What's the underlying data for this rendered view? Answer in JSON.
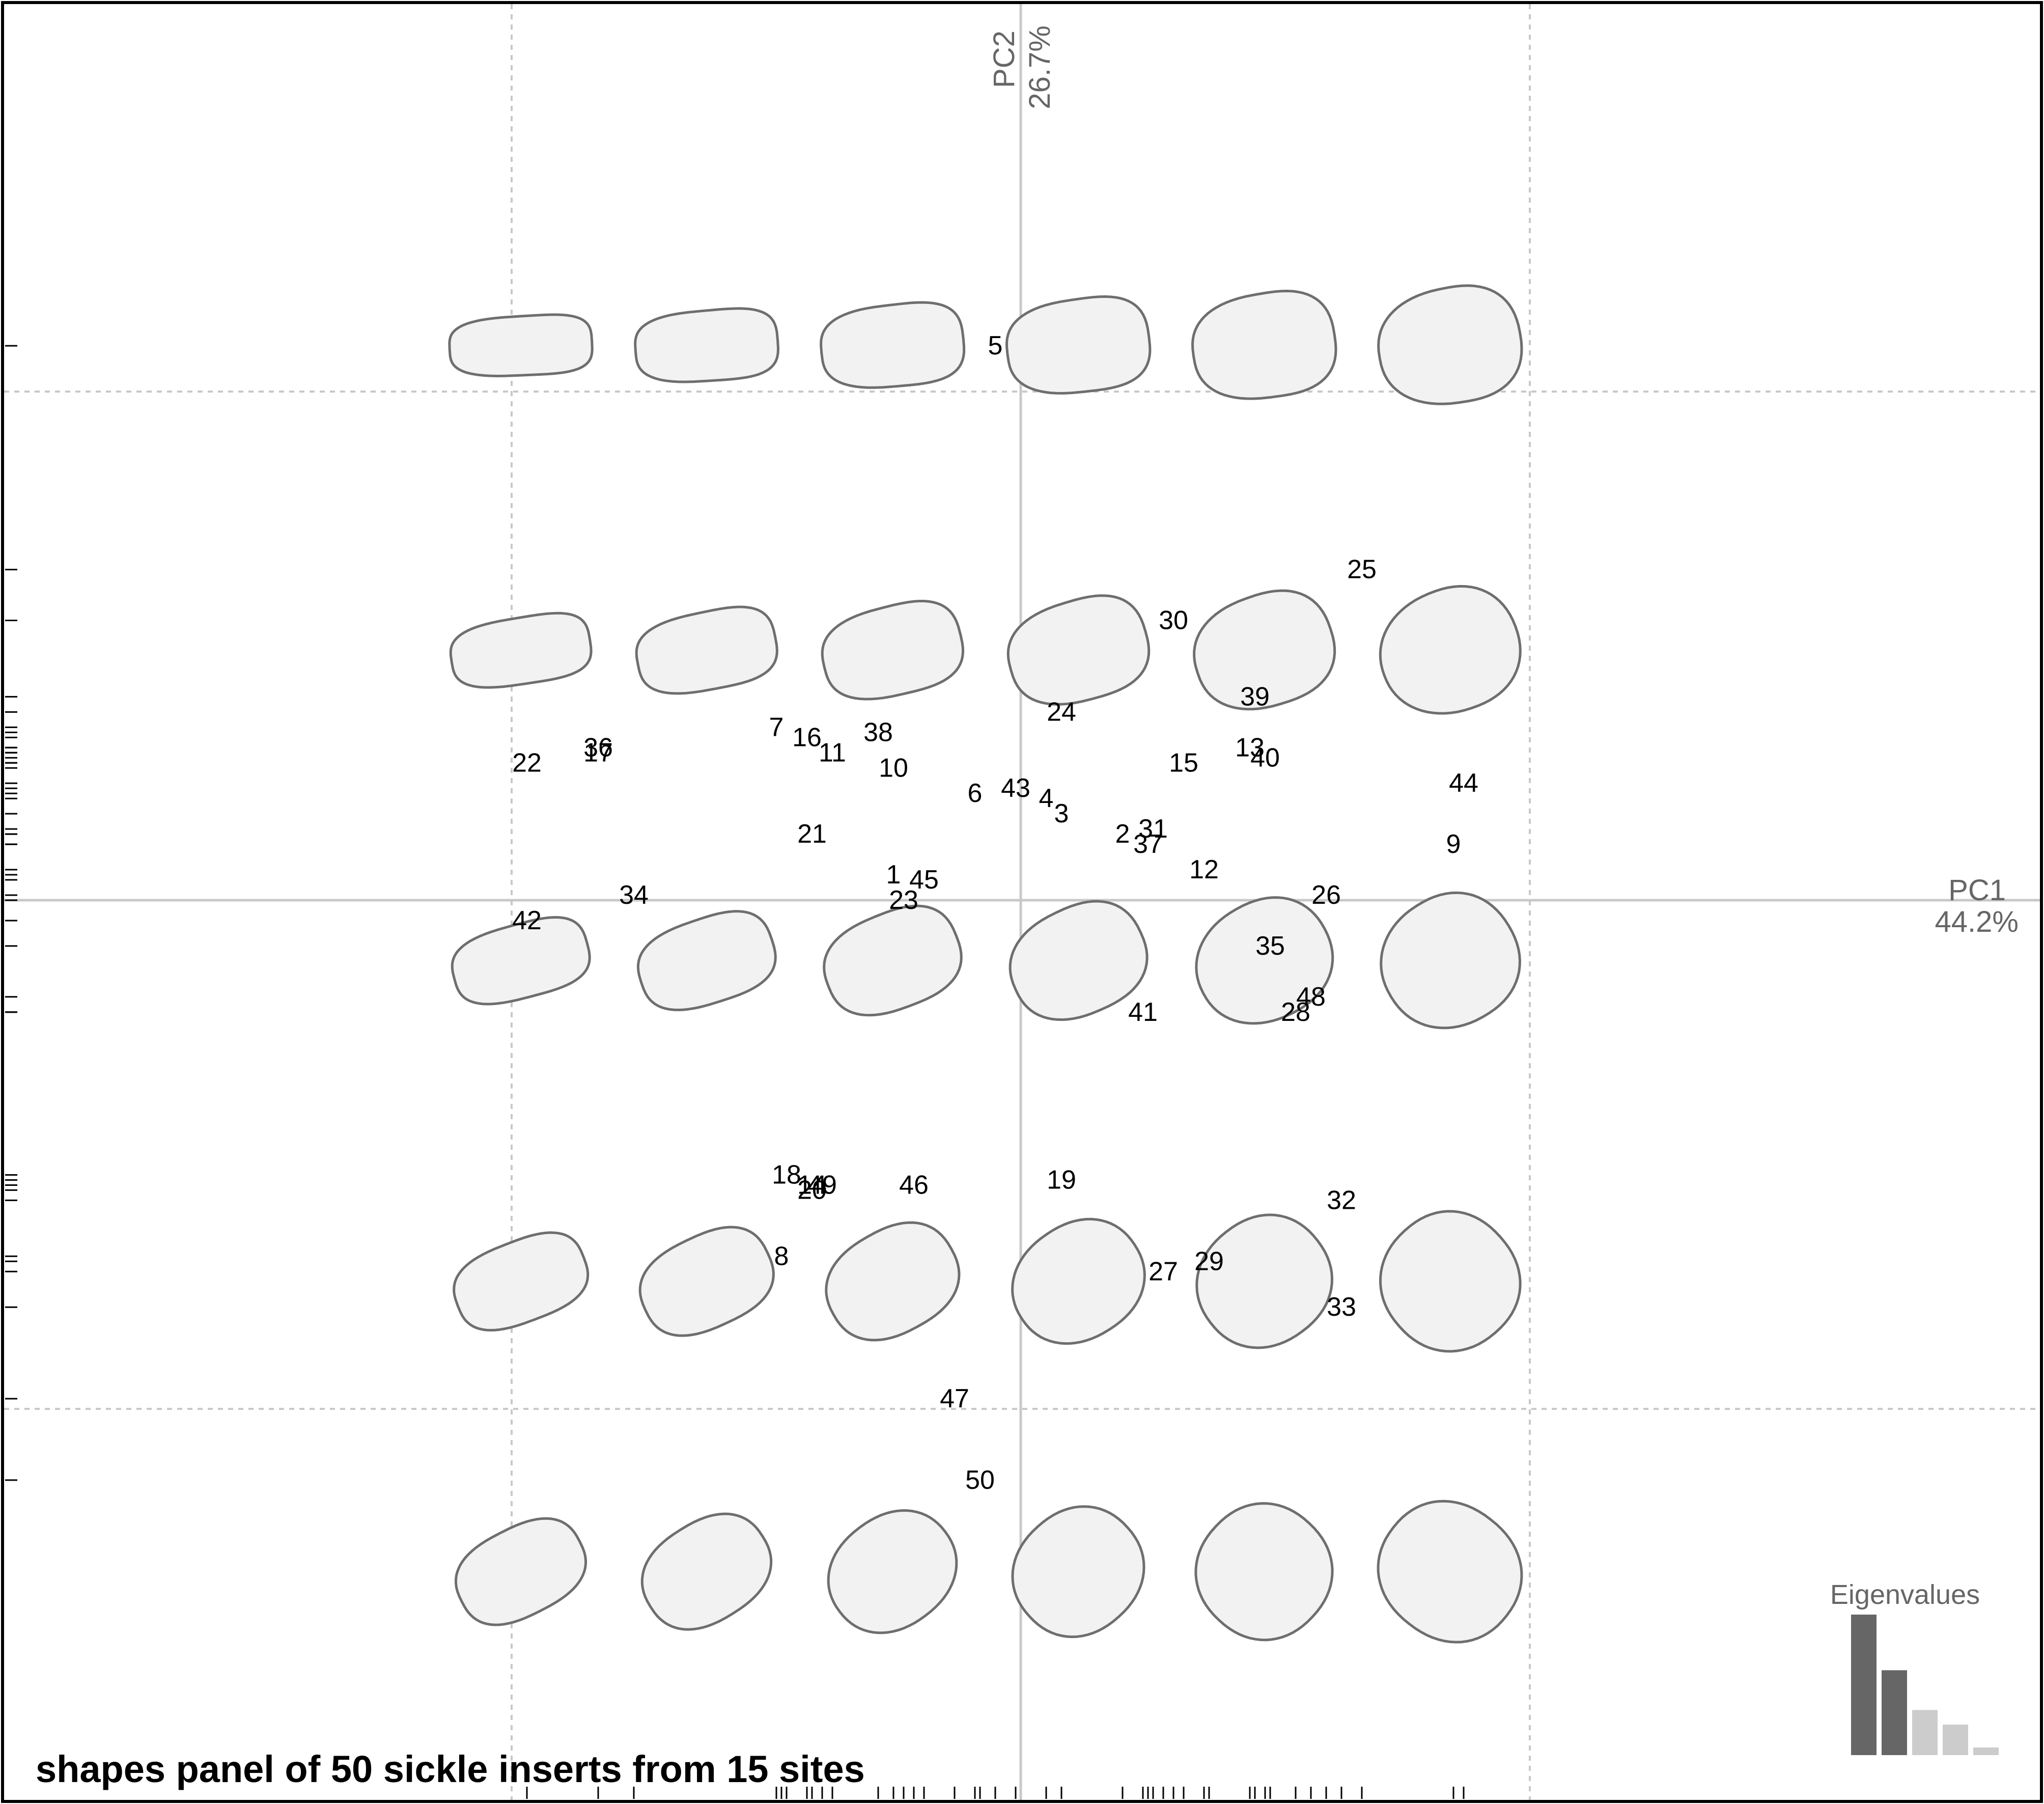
{
  "chart_data": {
    "type": "scatter",
    "title": "shapes panel of 50 sickle inserts from 15 sites",
    "x_axis": {
      "name": "PC1",
      "variance_label": "44.2%"
    },
    "y_axis": {
      "name": "PC2",
      "variance_label": "26.7%"
    },
    "xlim": [
      -1.15,
      2.05
    ],
    "ylim": [
      -1.75,
      1.23
    ],
    "grid": "dashed at ±1 on both axes",
    "points": [
      {
        "id": "1",
        "x": -0.25,
        "y": 0.05
      },
      {
        "id": "2",
        "x": 0.2,
        "y": 0.13
      },
      {
        "id": "3",
        "x": 0.08,
        "y": 0.17
      },
      {
        "id": "4",
        "x": 0.05,
        "y": 0.2
      },
      {
        "id": "5",
        "x": -0.05,
        "y": 1.09
      },
      {
        "id": "6",
        "x": -0.09,
        "y": 0.21
      },
      {
        "id": "7",
        "x": -0.48,
        "y": 0.34
      },
      {
        "id": "8",
        "x": -0.47,
        "y": -0.7
      },
      {
        "id": "9",
        "x": 0.85,
        "y": 0.11
      },
      {
        "id": "10",
        "x": -0.25,
        "y": 0.26
      },
      {
        "id": "11",
        "x": -0.37,
        "y": 0.29
      },
      {
        "id": "12",
        "x": 0.36,
        "y": 0.06
      },
      {
        "id": "13",
        "x": 0.45,
        "y": 0.3
      },
      {
        "id": "14",
        "x": -0.41,
        "y": -0.56
      },
      {
        "id": "15",
        "x": 0.32,
        "y": 0.27
      },
      {
        "id": "16",
        "x": -0.42,
        "y": 0.32
      },
      {
        "id": "17",
        "x": -0.83,
        "y": 0.29
      },
      {
        "id": "18",
        "x": -0.46,
        "y": -0.54
      },
      {
        "id": "19",
        "x": 0.08,
        "y": -0.55
      },
      {
        "id": "20",
        "x": -0.41,
        "y": -0.57
      },
      {
        "id": "21",
        "x": -0.41,
        "y": 0.13
      },
      {
        "id": "22",
        "x": -0.97,
        "y": 0.27
      },
      {
        "id": "23",
        "x": -0.23,
        "y": 0.0
      },
      {
        "id": "24",
        "x": 0.08,
        "y": 0.37
      },
      {
        "id": "25",
        "x": 0.67,
        "y": 0.65
      },
      {
        "id": "26",
        "x": 0.6,
        "y": 0.01
      },
      {
        "id": "27",
        "x": 0.28,
        "y": -0.73
      },
      {
        "id": "28",
        "x": 0.54,
        "y": -0.22
      },
      {
        "id": "29",
        "x": 0.37,
        "y": -0.71
      },
      {
        "id": "30",
        "x": 0.3,
        "y": 0.55
      },
      {
        "id": "31",
        "x": 0.26,
        "y": 0.14
      },
      {
        "id": "32",
        "x": 0.63,
        "y": -0.59
      },
      {
        "id": "33",
        "x": 0.63,
        "y": -0.8
      },
      {
        "id": "34",
        "x": -0.76,
        "y": 0.01
      },
      {
        "id": "35",
        "x": 0.49,
        "y": -0.09
      },
      {
        "id": "36",
        "x": -0.83,
        "y": 0.3
      },
      {
        "id": "37",
        "x": 0.25,
        "y": 0.11
      },
      {
        "id": "38",
        "x": -0.28,
        "y": 0.33
      },
      {
        "id": "39",
        "x": 0.46,
        "y": 0.4
      },
      {
        "id": "40",
        "x": 0.48,
        "y": 0.28
      },
      {
        "id": "41",
        "x": 0.24,
        "y": -0.22
      },
      {
        "id": "42",
        "x": -0.97,
        "y": -0.04
      },
      {
        "id": "43",
        "x": -0.01,
        "y": 0.22
      },
      {
        "id": "44",
        "x": 0.87,
        "y": 0.23
      },
      {
        "id": "45",
        "x": -0.19,
        "y": 0.04
      },
      {
        "id": "46",
        "x": -0.21,
        "y": -0.56
      },
      {
        "id": "47",
        "x": -0.13,
        "y": -0.98
      },
      {
        "id": "48",
        "x": 0.57,
        "y": -0.19
      },
      {
        "id": "49",
        "x": -0.39,
        "y": -0.56
      },
      {
        "id": "50",
        "x": -0.08,
        "y": -1.14
      }
    ],
    "shapes_panel": {
      "pc1_positions": [
        -1.0,
        -0.635,
        -0.27,
        0.095,
        0.46,
        0.825
      ],
      "pc2_positions": [
        1.09,
        0.49,
        -0.12,
        -0.75,
        -1.32
      ]
    },
    "eigenvalues": {
      "title": "Eigenvalues",
      "values": [
        44.2,
        26.7,
        14.2,
        9.6,
        2.4
      ],
      "highlighted_count": 2,
      "colors": {
        "highlighted": "#666666",
        "other": "#cccccc"
      }
    }
  },
  "colors": {
    "axis": "#c8c8c8",
    "grid": "#c8c8c8",
    "shape_fill": "#f2f2f2",
    "shape_stroke": "#6e6e6e",
    "axis_title": "#666666"
  }
}
